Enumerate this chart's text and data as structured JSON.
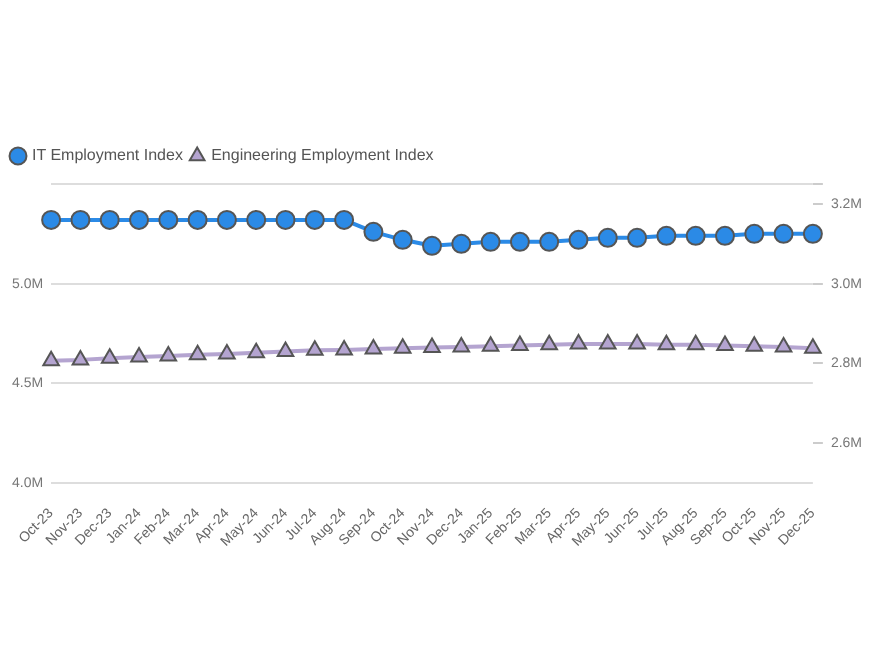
{
  "chart_data": {
    "type": "line",
    "categories": [
      "Oct-23",
      "Nov-23",
      "Dec-23",
      "Jan-24",
      "Feb-24",
      "Mar-24",
      "Apr-24",
      "May-24",
      "Jun-24",
      "Jul-24",
      "Aug-24",
      "Sep-24",
      "Oct-24",
      "Nov-24",
      "Dec-24",
      "Jan-25",
      "Feb-25",
      "Mar-25",
      "Apr-25",
      "May-25",
      "Jun-25",
      "Jul-25",
      "Aug-25",
      "Sep-25",
      "Oct-25",
      "Nov-25",
      "Dec-25"
    ],
    "series": [
      {
        "name": "IT Employment Index",
        "color": "#2b8ae6",
        "marker": "circle",
        "axis": "y",
        "values": [
          5.32,
          5.32,
          5.32,
          5.32,
          5.32,
          5.32,
          5.32,
          5.32,
          5.32,
          5.32,
          5.32,
          5.26,
          5.22,
          5.19,
          5.2,
          5.21,
          5.21,
          5.21,
          5.22,
          5.23,
          5.23,
          5.24,
          5.24,
          5.24,
          5.25,
          5.25,
          5.25
        ]
      },
      {
        "name": "Engineering Employment Index",
        "color": "#b4a4d0",
        "marker": "triangle",
        "axis": "y2",
        "values": [
          2.807,
          2.809,
          2.813,
          2.816,
          2.819,
          2.822,
          2.824,
          2.827,
          2.83,
          2.833,
          2.834,
          2.836,
          2.838,
          2.84,
          2.841,
          2.843,
          2.845,
          2.847,
          2.849,
          2.849,
          2.849,
          2.847,
          2.847,
          2.845,
          2.843,
          2.841,
          2.838
        ]
      }
    ],
    "ylim": [
      4.0,
      5.5
    ],
    "yticks": [
      {
        "value": 4.0,
        "label": "4.0M"
      },
      {
        "value": 4.5,
        "label": "4.5M"
      },
      {
        "value": 5.0,
        "label": "5.0M"
      },
      {
        "value": 5.5,
        "label": null
      }
    ],
    "y2lim": [
      2.5,
      3.25
    ],
    "y2ticks": [
      {
        "value": 2.6,
        "label": "2.6M"
      },
      {
        "value": 2.8,
        "label": "2.8M"
      },
      {
        "value": 3.0,
        "label": "3.0M"
      },
      {
        "value": 3.2,
        "label": "3.2M"
      },
      {
        "value": 3.25,
        "label": null
      }
    ],
    "grid": "y",
    "legend": "top left",
    "line_style": "solid"
  }
}
